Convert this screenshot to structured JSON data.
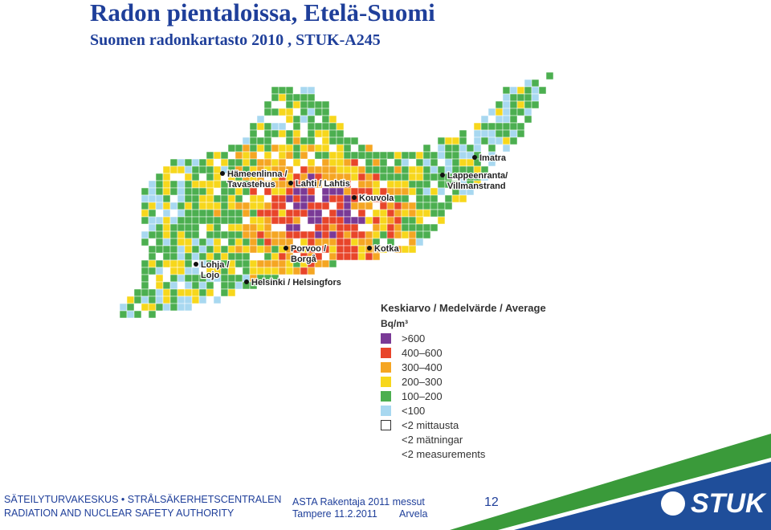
{
  "header": {
    "title": "Radon pientaloissa, Etelä-Suomi",
    "subtitle": "Suomen radonkartasto 2010 , STUK-A245"
  },
  "map": {
    "places": [
      [
        "Hämeenlinna /",
        "Tavastehus"
      ],
      [
        "Lahti / Lahtis"
      ],
      [
        "Kouvola"
      ],
      [
        "Imatra"
      ],
      [
        "Lappeenranta/",
        "Villmanstrand"
      ],
      [
        "Kotka"
      ],
      [
        "Porvoo /",
        "Borgå"
      ],
      [
        "Lohja /",
        "Lojo"
      ],
      [
        "Helsinki / Helsingfors"
      ]
    ]
  },
  "legend": {
    "title": "Keskiarvo / Medelvärde / Average",
    "unit": "Bq/m³",
    "items": [
      {
        "label": ">600",
        "color": "#7a3a96"
      },
      {
        "label": "400–600",
        "color": "#e8452a"
      },
      {
        "label": "300–400",
        "color": "#f5a623"
      },
      {
        "label": "200–300",
        "color": "#f7d71c"
      },
      {
        "label": "100–200",
        "color": "#4caf50"
      },
      {
        "label": "<100",
        "color": "#a8d8f0"
      }
    ],
    "no_data": [
      "<2 mittausta",
      "<2 mätningar",
      "<2 measurements"
    ]
  },
  "footer": {
    "org_fi_sv": "SÄTEILYTURVAKESKUS • STRÅLSÄKERHETSCENTRALEN",
    "org_en": "RADIATION AND NUCLEAR SAFETY AUTHORITY",
    "event": "ASTA Rakentaja 2011 messut",
    "place_date": "Tampere 11.2.2011",
    "author": "Arvela",
    "page": "12",
    "logo": "STUK"
  }
}
